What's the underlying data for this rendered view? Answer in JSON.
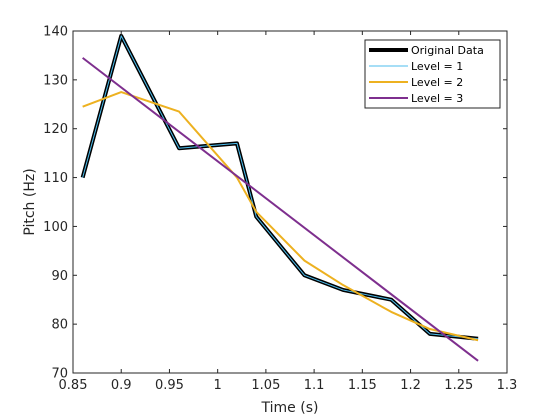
{
  "chart_data": {
    "type": "line",
    "xlabel": "Time (s)",
    "ylabel": "Pitch (Hz)",
    "xlim": [
      0.85,
      1.3
    ],
    "ylim": [
      70,
      140
    ],
    "xticks": [
      0.85,
      0.9,
      0.95,
      1,
      1.05,
      1.1,
      1.15,
      1.2,
      1.25,
      1.3
    ],
    "xtick_labels": [
      "0.85",
      "0.9",
      "0.95",
      "1",
      "1.05",
      "1.1",
      "1.15",
      "1.2",
      "1.25",
      "1.3"
    ],
    "yticks": [
      70,
      80,
      90,
      100,
      110,
      120,
      130,
      140
    ],
    "ytick_labels": [
      "70",
      "80",
      "90",
      "100",
      "110",
      "120",
      "130",
      "140"
    ],
    "grid": false,
    "legend_position": "top-right",
    "series": [
      {
        "name": "Original Data",
        "color": "#000000",
        "x": [
          0.86,
          0.9,
          0.96,
          1.02,
          1.04,
          1.09,
          1.13,
          1.18,
          1.22,
          1.27
        ],
        "y": [
          110,
          139,
          116,
          117,
          102,
          90,
          87,
          85,
          78,
          77
        ]
      },
      {
        "name": "Level = 1",
        "color": "#4dbeee",
        "x": [
          0.86,
          0.9,
          0.96,
          1.02,
          1.04,
          1.09,
          1.13,
          1.18,
          1.22,
          1.27
        ],
        "y": [
          110,
          139,
          116,
          117,
          102,
          90,
          87,
          85,
          78,
          77
        ]
      },
      {
        "name": "Level = 2",
        "color": "#edb120",
        "x": [
          0.86,
          0.9,
          0.96,
          1.02,
          1.04,
          1.09,
          1.13,
          1.18,
          1.22,
          1.27
        ],
        "y": [
          124.5,
          127.5,
          123.5,
          110,
          103,
          93,
          88,
          82.5,
          79,
          76.7
        ]
      },
      {
        "name": "Level = 3",
        "color": "#7e2f8e",
        "x": [
          0.86,
          1.27
        ],
        "y": [
          134.5,
          72.5
        ]
      }
    ]
  }
}
